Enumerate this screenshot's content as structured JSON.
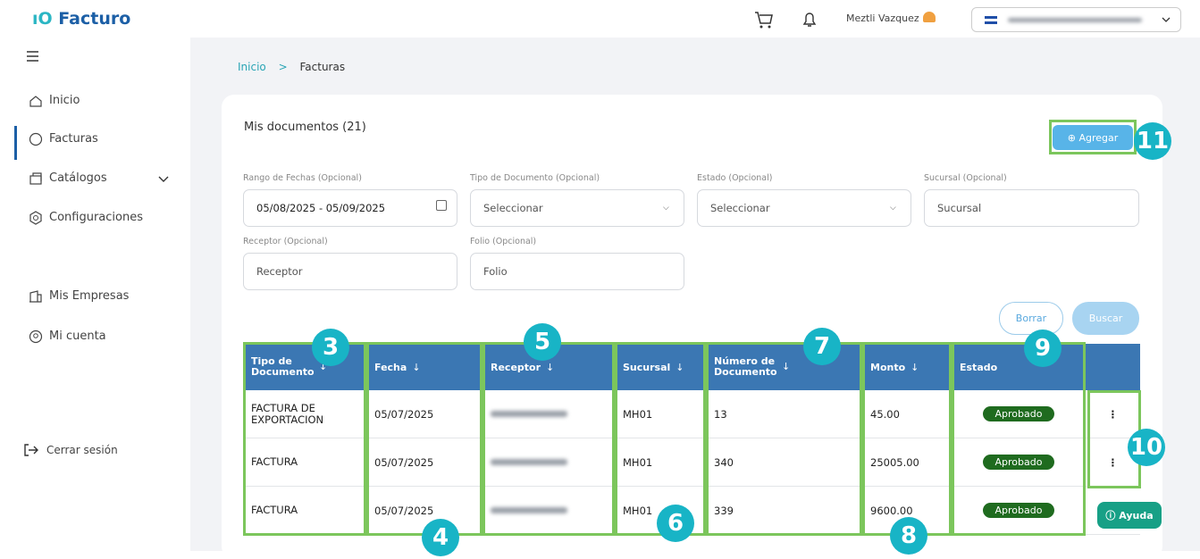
{
  "brand": "Facturo",
  "header": {
    "user": "Meztli Vazquez"
  },
  "sidebar": {
    "items": [
      "Inicio",
      "Facturas",
      "Catálogos",
      "Configuraciones",
      "Mis Empresas",
      "Mi cuenta"
    ],
    "logout": "Cerrar sesión"
  },
  "breadcrumb": [
    "Inicio",
    "Facturas"
  ],
  "card": {
    "title": "Mis documentos (21)",
    "add_button": "Agregar"
  },
  "filters": [
    {
      "label": "Rango de Fechas",
      "optional": "(Opcional)",
      "value": "05/08/2025 - 05/09/2025"
    },
    {
      "label": "Tipo de Documento",
      "optional": "(Opcional)",
      "value": "Seleccionar"
    },
    {
      "label": "Estado",
      "optional": "(Opcional)",
      "value": "Seleccionar"
    },
    {
      "label": "Sucursal",
      "optional": "(Opcional)",
      "value": "Sucursal"
    },
    {
      "label": "Receptor",
      "optional": "(Opcional)",
      "value": "Receptor"
    },
    {
      "label": "Folio",
      "optional": "(Opcional)",
      "value": "Folio"
    }
  ],
  "buttons": {
    "clear": "Borrar",
    "search": "Buscar"
  },
  "table": {
    "columns": [
      "Tipo de Documento",
      "Fecha",
      "Receptor",
      "Sucursal",
      "Número de Documento",
      "Monto",
      "Estado"
    ],
    "rows": [
      {
        "tipo": "FACTURA DE EXPORTACION",
        "fecha": "05/07/2025",
        "sucursal": "MH01",
        "numero": 13,
        "monto": "45.00",
        "estado": "Aprobado"
      },
      {
        "tipo": "FACTURA",
        "fecha": "05/07/2025",
        "sucursal": "MH01",
        "numero": 340,
        "monto": "25005.00",
        "estado": "Aprobado"
      },
      {
        "tipo": "FACTURA",
        "fecha": "05/07/2025",
        "sucursal": "MH01",
        "numero": 339,
        "monto": "9600.00",
        "estado": "Aprobado"
      }
    ]
  },
  "annotations": [
    3,
    4,
    5,
    6,
    7,
    8,
    9,
    10,
    11
  ],
  "help": "Ayuda"
}
